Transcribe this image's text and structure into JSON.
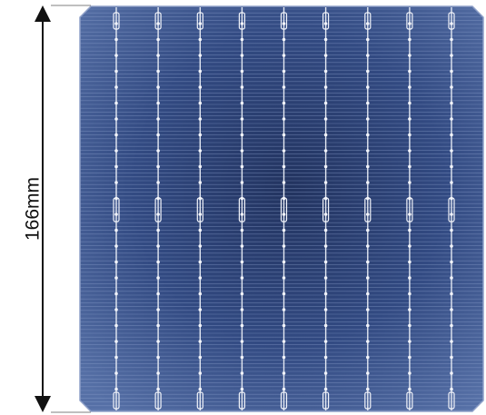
{
  "dimension": {
    "label": "166mm"
  },
  "colors": {
    "background": "#ffffff",
    "cell_dark": "#1c2b5a",
    "cell_mid": "#3d5894",
    "cell_edge": "#6f86b8",
    "busbar": "#e3e8f2",
    "finger": "#8fa4cf",
    "arrow": "#111111"
  },
  "cell": {
    "busbar_count": 9,
    "shape": "pseudo-square"
  }
}
